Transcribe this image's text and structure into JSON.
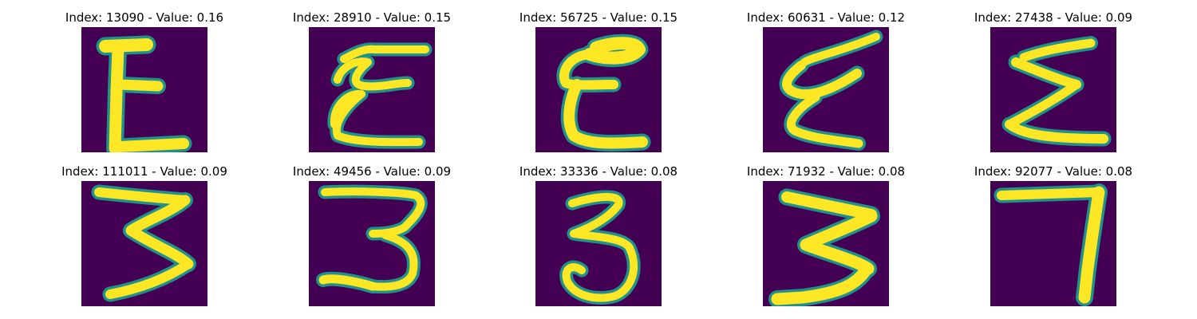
{
  "panels": [
    {
      "index": "13090",
      "value": "0.16",
      "title": "Index: 13090 - Value: 0.16",
      "glyph": "E-block"
    },
    {
      "index": "28910",
      "value": "0.15",
      "title": "Index: 28910 - Value: 0.15",
      "glyph": "E-loopy"
    },
    {
      "index": "56725",
      "value": "0.15",
      "title": "Index: 56725 - Value: 0.15",
      "glyph": "E-round"
    },
    {
      "index": "60631",
      "value": "0.12",
      "title": "Index: 60631 - Value: 0.12",
      "glyph": "E-slanted"
    },
    {
      "index": "27438",
      "value": "0.09",
      "title": "Index: 27438 - Value: 0.09",
      "glyph": "sigma"
    },
    {
      "index": "111011",
      "value": "0.09",
      "title": "Index: 111011 - Value: 0.09",
      "glyph": "three-angular"
    },
    {
      "index": "49456",
      "value": "0.09",
      "title": "Index: 49456 - Value: 0.09",
      "glyph": "three-wide"
    },
    {
      "index": "33336",
      "value": "0.08",
      "title": "Index: 33336 - Value: 0.08",
      "glyph": "three-curly"
    },
    {
      "index": "71932",
      "value": "0.08",
      "title": "Index: 71932 - Value: 0.08",
      "glyph": "three-bold"
    },
    {
      "index": "92077",
      "value": "0.08",
      "title": "Index: 92077 - Value: 0.08",
      "glyph": "seven"
    }
  ],
  "colors": {
    "background": "#440154",
    "edge": "#21918c",
    "stroke": "#fde725"
  }
}
